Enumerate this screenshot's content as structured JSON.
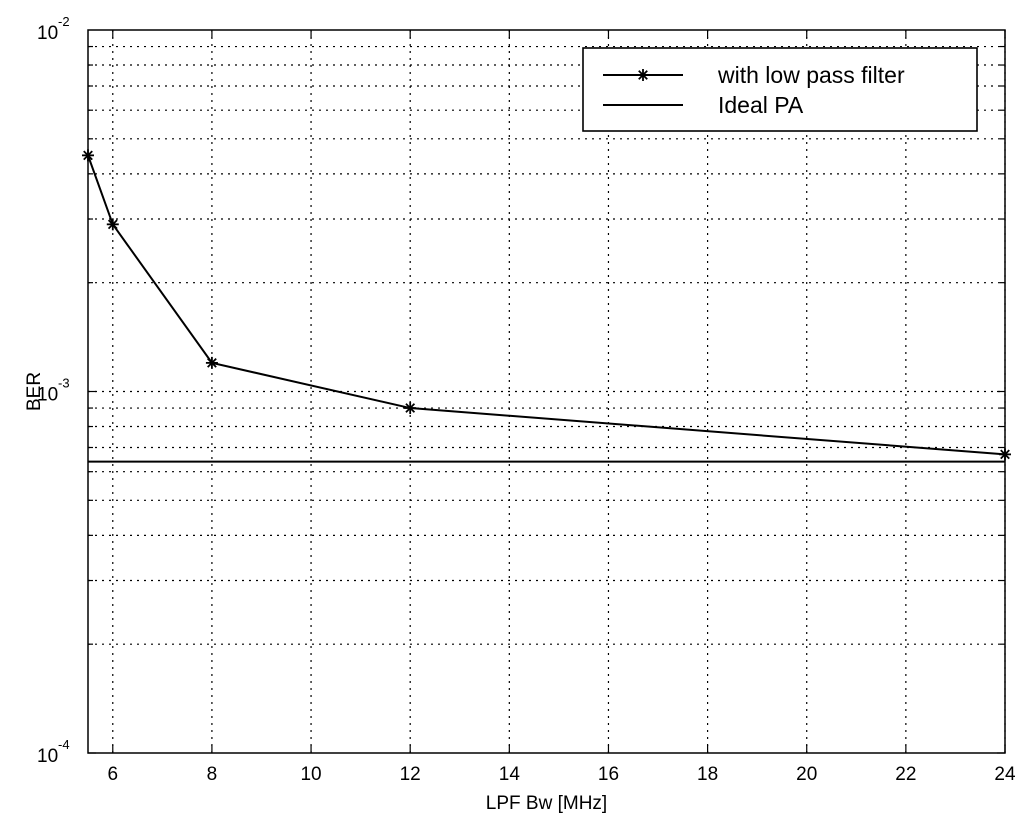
{
  "chart_data": {
    "type": "line",
    "xlabel": "LPF Bw [MHz]",
    "ylabel": "BER",
    "xlim": [
      5.5,
      24
    ],
    "ylim": [
      0.0001,
      0.01
    ],
    "yscale": "log",
    "grid": true,
    "legend_position": "top-right",
    "x_ticks": [
      6,
      8,
      10,
      12,
      14,
      16,
      18,
      20,
      22,
      24
    ],
    "y_ticks": [
      {
        "value": 0.0001,
        "base": "10",
        "exponent": "-4"
      },
      {
        "value": 0.001,
        "base": "10",
        "exponent": "-3"
      },
      {
        "value": 0.01,
        "base": "10",
        "exponent": "-2"
      }
    ],
    "series": [
      {
        "name": "with low pass filter",
        "marker": "asterisk",
        "color": "#000000",
        "x": [
          5.5,
          6,
          8,
          12,
          24
        ],
        "y": [
          0.0045,
          0.0029,
          0.0012,
          0.0009,
          0.00067
        ]
      },
      {
        "name": "Ideal PA",
        "marker": "none",
        "color": "#000000",
        "x": [
          5.5,
          24
        ],
        "y": [
          0.00064,
          0.00064
        ]
      }
    ]
  }
}
